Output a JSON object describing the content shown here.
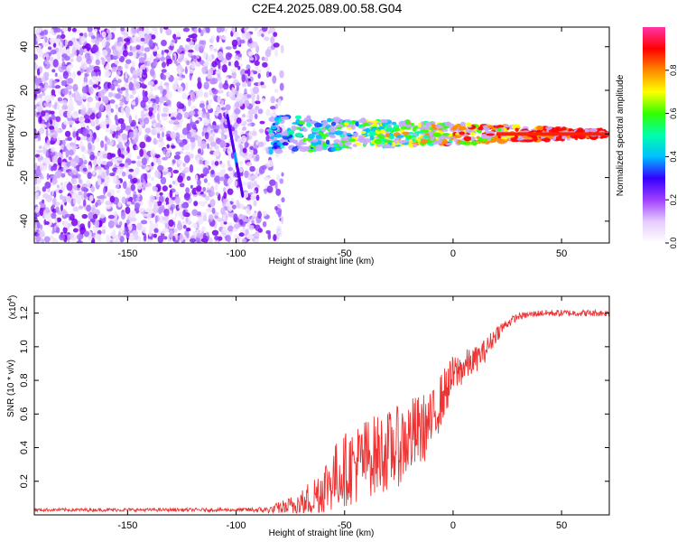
{
  "title": "C2E4.2025.089.00.58.G04",
  "colors": {
    "snr_line": "#ee3333",
    "spectrogram_noise": "#7a00ee",
    "axes": "#000000"
  },
  "chart_data": [
    {
      "type": "heatmap",
      "name": "spectrogram",
      "xlabel": "Height of straight line (km)",
      "ylabel": "Frequency (Hz)",
      "xlim": [
        -193,
        72
      ],
      "ylim": [
        -50,
        49
      ],
      "xticks": [
        -150,
        -100,
        -50,
        0,
        50
      ],
      "yticks": [
        -40,
        -20,
        0,
        20,
        40
      ],
      "grid": false,
      "colorbar": {
        "label": "Normalized spectral amplitude",
        "range": [
          0,
          1
        ],
        "ticks": [
          "0.0",
          "0.2",
          "0.4",
          "0.6",
          "0.8"
        ],
        "colormap": [
          "#ffffff",
          "#e6ccff",
          "#a040ff",
          "#3300ff",
          "#00bfff",
          "#00ffaa",
          "#33ff00",
          "#ffff00",
          "#ff8800",
          "#ff0000",
          "#ff33aa"
        ]
      },
      "features": {
        "noise_region_x": [
          -193,
          -78
        ],
        "signal_onset_x": -85,
        "signal_center_freq": 0,
        "streak": {
          "x": [
            -104,
            -97
          ],
          "freq": [
            -28,
            8
          ]
        }
      }
    },
    {
      "type": "line",
      "name": "snr",
      "xlabel": "Height of straight line (km)",
      "ylabel": "SNR (10 * v/v)",
      "y_multiplier": "(x10",
      "y_multiplier_exp": "4",
      "xlim": [
        -193,
        72
      ],
      "ylim": [
        0,
        1.3
      ],
      "xticks": [
        -150,
        -100,
        -50,
        0,
        50
      ],
      "yticks": [
        0.2,
        0.4,
        0.6,
        0.8,
        1.0,
        1.2
      ],
      "grid": false,
      "series": [
        {
          "x": [
            -193,
            -150,
            -100,
            -85,
            -75,
            -65,
            -60,
            -55,
            -50,
            -45,
            -40,
            -35,
            -30,
            -25,
            -20,
            -15,
            -10,
            -5,
            0,
            5,
            10,
            15,
            20,
            25,
            30,
            40,
            50,
            60,
            72
          ],
          "y": [
            0.03,
            0.03,
            0.03,
            0.03,
            0.05,
            0.1,
            0.16,
            0.22,
            0.27,
            0.3,
            0.34,
            0.36,
            0.38,
            0.41,
            0.46,
            0.5,
            0.55,
            0.7,
            0.83,
            0.88,
            0.92,
            0.98,
            1.08,
            1.14,
            1.18,
            1.2,
            1.2,
            1.2,
            1.2
          ],
          "noise": [
            0.01,
            0.01,
            0.01,
            0.02,
            0.06,
            0.12,
            0.16,
            0.2,
            0.22,
            0.24,
            0.24,
            0.24,
            0.24,
            0.24,
            0.24,
            0.22,
            0.18,
            0.16,
            0.12,
            0.1,
            0.08,
            0.07,
            0.05,
            0.03,
            0.02,
            0.02,
            0.02,
            0.02,
            0.02
          ]
        }
      ]
    }
  ]
}
